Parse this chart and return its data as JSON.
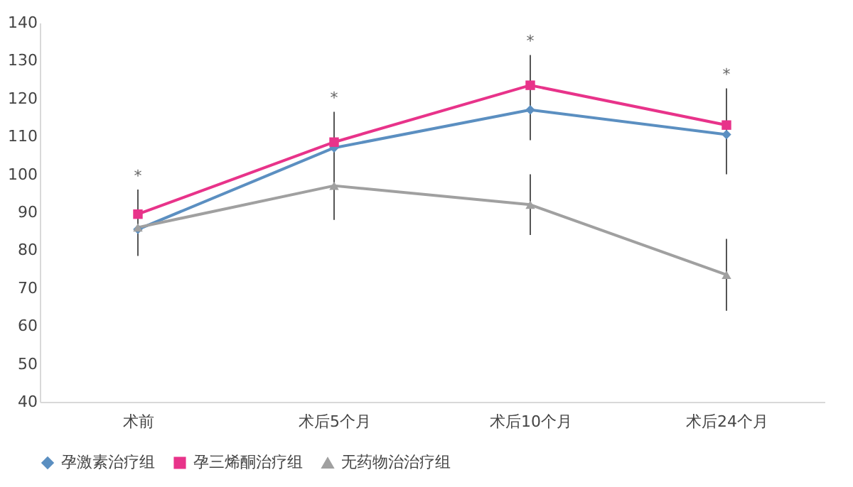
{
  "chart_data": {
    "type": "line",
    "categories": [
      "术前",
      "术后5个月",
      "术后10个月",
      "术后24个月"
    ],
    "series": [
      {
        "name": "孕激素治疗组",
        "color": "#5b8fc1",
        "marker": "diamond",
        "values": [
          85.5,
          107,
          117,
          110.5
        ],
        "errors": [
          5,
          null,
          8,
          10.5
        ]
      },
      {
        "name": "孕三烯酮治疗组",
        "color": "#e8338a",
        "marker": "square",
        "values": [
          89.5,
          108.5,
          123.5,
          113
        ],
        "errors": [
          6.5,
          8,
          8,
          9.7
        ]
      },
      {
        "name": "无药物治治疗组",
        "color": "#a0a0a0",
        "marker": "triangle",
        "values": [
          86,
          97,
          92,
          73.5
        ],
        "errors": [
          7.5,
          9,
          8,
          9.5
        ]
      }
    ],
    "ylim": [
      40,
      140
    ],
    "yticks": [
      40,
      50,
      60,
      70,
      80,
      90,
      100,
      110,
      120,
      130,
      140
    ],
    "annotations": [
      "*",
      "*",
      "*",
      "*"
    ],
    "grid": false,
    "legend": "bottom",
    "line_style": "solid"
  }
}
